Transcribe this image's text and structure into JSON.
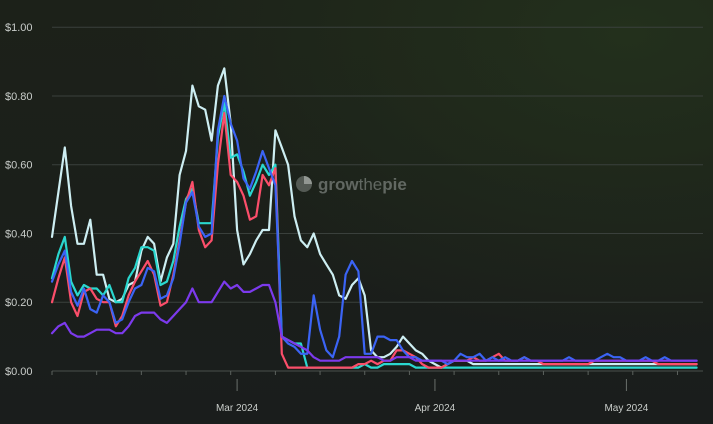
{
  "watermark": {
    "pre": "grow",
    "mid": "the",
    "post": "pie"
  },
  "chart_data": {
    "type": "line",
    "x_start": "2024-02-01",
    "xlim": [
      "2024-02-01",
      "2024-05-13"
    ],
    "ylim": [
      0,
      1.05
    ],
    "y_ticks": [
      0,
      0.2,
      0.4,
      0.6,
      0.8,
      1.0
    ],
    "y_tick_labels": [
      "$0.00",
      "$0.20",
      "$0.40",
      "$0.60",
      "$0.80",
      "$1.00"
    ],
    "x_tick_labels": [
      {
        "date": "2024-03-01",
        "label": "Mar 2024"
      },
      {
        "date": "2024-04-01",
        "label": "Apr 2024"
      },
      {
        "date": "2024-05-01",
        "label": "May 2024"
      }
    ],
    "grid": true,
    "legend": "none",
    "series": [
      {
        "color": "#cdeef2",
        "values": [
          0.39,
          0.52,
          0.65,
          0.48,
          0.37,
          0.37,
          0.44,
          0.28,
          0.28,
          0.21,
          0.2,
          0.21,
          0.25,
          0.26,
          0.35,
          0.39,
          0.37,
          0.26,
          0.33,
          0.37,
          0.57,
          0.64,
          0.83,
          0.77,
          0.76,
          0.67,
          0.83,
          0.88,
          0.72,
          0.41,
          0.31,
          0.34,
          0.38,
          0.41,
          0.41,
          0.7,
          0.65,
          0.6,
          0.45,
          0.38,
          0.36,
          0.4,
          0.34,
          0.31,
          0.28,
          0.22,
          0.21,
          0.25,
          0.27,
          0.22,
          0.06,
          0.04,
          0.04,
          0.05,
          0.07,
          0.1,
          0.08,
          0.06,
          0.05,
          0.03,
          0.02,
          0.01,
          0.02,
          0.03,
          0.03,
          0.03,
          0.02,
          0.02,
          0.02,
          0.02,
          0.02,
          0.02,
          0.02,
          0.02,
          0.02,
          0.02,
          0.02,
          0.02,
          0.02,
          0.02,
          0.02,
          0.02,
          0.02,
          0.02,
          0.02,
          0.02,
          0.02,
          0.02,
          0.02,
          0.02,
          0.02,
          0.02,
          0.02,
          0.02,
          0.02,
          0.02,
          0.02,
          0.02,
          0.02,
          0.02,
          0.02,
          0.02
        ]
      },
      {
        "color": "#2ad7cf",
        "values": [
          0.27,
          0.34,
          0.39,
          0.26,
          0.22,
          0.25,
          0.24,
          0.24,
          0.22,
          0.25,
          0.2,
          0.2,
          0.27,
          0.3,
          0.36,
          0.36,
          0.35,
          0.25,
          0.26,
          0.32,
          0.42,
          0.5,
          0.53,
          0.43,
          0.43,
          0.43,
          0.68,
          0.78,
          0.62,
          0.63,
          0.58,
          0.51,
          0.55,
          0.6,
          0.57,
          0.6,
          0.1,
          0.09,
          0.08,
          0.08,
          0.01,
          0.01,
          0.01,
          0.01,
          0.01,
          0.01,
          0.01,
          0.01,
          0.01,
          0.02,
          0.01,
          0.01,
          0.02,
          0.02,
          0.02,
          0.02,
          0.02,
          0.01,
          0.01,
          0.01,
          0.01,
          0.01,
          0.01,
          0.01,
          0.01,
          0.01,
          0.01,
          0.01,
          0.01,
          0.01,
          0.01,
          0.01,
          0.01,
          0.01,
          0.01,
          0.01,
          0.01,
          0.01,
          0.01,
          0.01,
          0.01,
          0.01,
          0.01,
          0.01,
          0.01,
          0.01,
          0.01,
          0.01,
          0.01,
          0.01,
          0.01,
          0.01,
          0.01,
          0.01,
          0.01,
          0.01,
          0.01,
          0.01,
          0.01,
          0.01,
          0.01,
          0.01
        ]
      },
      {
        "color": "#fb4e6a",
        "values": [
          0.2,
          0.27,
          0.33,
          0.2,
          0.16,
          0.23,
          0.24,
          0.21,
          0.2,
          0.2,
          0.13,
          0.16,
          0.22,
          0.26,
          0.29,
          0.32,
          0.28,
          0.19,
          0.2,
          0.28,
          0.38,
          0.49,
          0.55,
          0.41,
          0.36,
          0.38,
          0.6,
          0.75,
          0.57,
          0.55,
          0.51,
          0.44,
          0.45,
          0.57,
          0.54,
          0.59,
          0.05,
          0.01,
          0.01,
          0.01,
          0.01,
          0.01,
          0.01,
          0.01,
          0.01,
          0.01,
          0.01,
          0.01,
          0.02,
          0.02,
          0.03,
          0.02,
          0.03,
          0.03,
          0.06,
          0.06,
          0.05,
          0.04,
          0.02,
          0.01,
          0.01,
          0.01,
          0.02,
          0.03,
          0.03,
          0.03,
          0.04,
          0.03,
          0.03,
          0.04,
          0.05,
          0.03,
          0.03,
          0.03,
          0.04,
          0.03,
          0.03,
          0.02,
          0.02,
          0.02,
          0.02,
          0.02,
          0.02,
          0.02,
          0.02,
          0.03,
          0.03,
          0.03,
          0.03,
          0.03,
          0.03,
          0.03,
          0.03,
          0.03,
          0.03,
          0.02,
          0.02,
          0.02,
          0.02,
          0.02,
          0.02,
          0.02
        ]
      },
      {
        "color": "#3b64f5",
        "values": [
          0.26,
          0.31,
          0.35,
          0.23,
          0.19,
          0.24,
          0.18,
          0.17,
          0.22,
          0.2,
          0.14,
          0.15,
          0.2,
          0.24,
          0.25,
          0.3,
          0.29,
          0.21,
          0.22,
          0.27,
          0.37,
          0.49,
          0.52,
          0.42,
          0.39,
          0.4,
          0.7,
          0.8,
          0.72,
          0.67,
          0.56,
          0.53,
          0.58,
          0.64,
          0.59,
          0.54,
          0.1,
          0.08,
          0.07,
          0.05,
          0.05,
          0.22,
          0.12,
          0.06,
          0.04,
          0.1,
          0.28,
          0.32,
          0.29,
          0.05,
          0.05,
          0.1,
          0.1,
          0.09,
          0.09,
          0.06,
          0.04,
          0.04,
          0.03,
          0.03,
          0.03,
          0.03,
          0.02,
          0.03,
          0.05,
          0.04,
          0.04,
          0.05,
          0.03,
          0.04,
          0.03,
          0.04,
          0.03,
          0.03,
          0.04,
          0.03,
          0.03,
          0.03,
          0.03,
          0.03,
          0.03,
          0.04,
          0.03,
          0.03,
          0.03,
          0.03,
          0.04,
          0.05,
          0.04,
          0.04,
          0.03,
          0.03,
          0.03,
          0.04,
          0.03,
          0.03,
          0.04,
          0.03,
          0.03,
          0.03,
          0.03,
          0.03
        ]
      },
      {
        "color": "#7c3aed",
        "values": [
          0.11,
          0.13,
          0.14,
          0.11,
          0.1,
          0.1,
          0.11,
          0.12,
          0.12,
          0.12,
          0.11,
          0.11,
          0.13,
          0.16,
          0.17,
          0.17,
          0.17,
          0.15,
          0.14,
          0.16,
          0.18,
          0.2,
          0.24,
          0.2,
          0.2,
          0.2,
          0.23,
          0.26,
          0.24,
          0.25,
          0.23,
          0.23,
          0.24,
          0.25,
          0.25,
          0.2,
          0.1,
          0.09,
          0.08,
          0.07,
          0.06,
          0.04,
          0.03,
          0.03,
          0.03,
          0.03,
          0.04,
          0.04,
          0.04,
          0.04,
          0.04,
          0.04,
          0.03,
          0.03,
          0.04,
          0.04,
          0.04,
          0.03,
          0.03,
          0.03,
          0.03,
          0.03,
          0.03,
          0.03,
          0.03,
          0.03,
          0.03,
          0.03,
          0.03,
          0.03,
          0.03,
          0.03,
          0.03,
          0.03,
          0.03,
          0.03,
          0.03,
          0.03,
          0.03,
          0.03,
          0.03,
          0.03,
          0.03,
          0.03,
          0.03,
          0.03,
          0.03,
          0.03,
          0.03,
          0.03,
          0.03,
          0.03,
          0.03,
          0.03,
          0.03,
          0.03,
          0.03,
          0.03,
          0.03,
          0.03,
          0.03,
          0.03
        ]
      }
    ]
  }
}
